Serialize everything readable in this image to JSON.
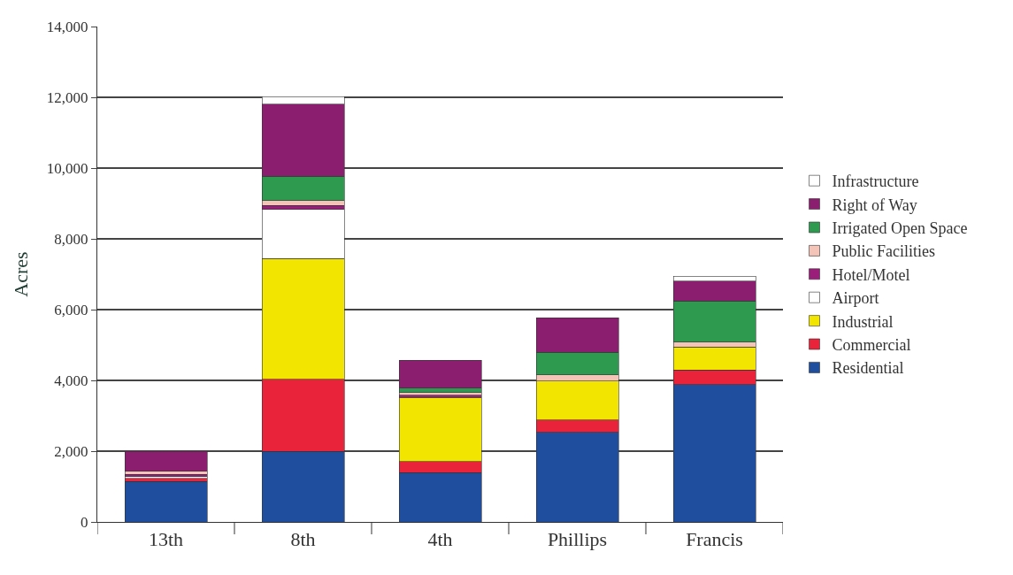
{
  "chart_data": {
    "type": "bar",
    "stacked": true,
    "ylabel": "Acres",
    "categories": [
      "13th",
      "8th",
      "4th",
      "Phillips",
      "Francis"
    ],
    "series": [
      {
        "name": "Residential",
        "color": "#1f4e9f",
        "values": [
          1150,
          1990,
          1400,
          2530,
          3880
        ]
      },
      {
        "name": "Commercial",
        "color": "#e8233a",
        "values": [
          80,
          2040,
          310,
          350,
          410
        ]
      },
      {
        "name": "Industrial",
        "color": "#f2e600",
        "values": [
          null,
          3420,
          1810,
          1100,
          660
        ]
      },
      {
        "name": "Airport",
        "color": "#ffffff",
        "values": [
          50,
          1380,
          null,
          null,
          null
        ]
      },
      {
        "name": "Hotel/Motel",
        "color": "#9b1f7a",
        "values": [
          70,
          120,
          60,
          null,
          null
        ]
      },
      {
        "name": "Public Facilities",
        "color": "#f4c4b8",
        "values": [
          80,
          130,
          80,
          180,
          130
        ]
      },
      {
        "name": "Irrigated Open Space",
        "color": "#2e9a50",
        "values": [
          null,
          690,
          120,
          640,
          1170
        ]
      },
      {
        "name": "Right of Way",
        "color": "#8b1e6e",
        "values": [
          570,
          2040,
          790,
          970,
          560
        ]
      },
      {
        "name": "Infrastructure",
        "color": "#ffffff",
        "values": [
          null,
          210,
          null,
          null,
          130
        ]
      }
    ],
    "ylim": [
      0,
      14000
    ],
    "yticks": [
      {
        "value": 0,
        "label": "0"
      },
      {
        "value": 2000,
        "label": "2,000"
      },
      {
        "value": 4000,
        "label": "4,000"
      },
      {
        "value": 6000,
        "label": "6,000"
      },
      {
        "value": 8000,
        "label": "8,000"
      },
      {
        "value": 10000,
        "label": "10,000"
      },
      {
        "value": 12000,
        "label": "12,000"
      },
      {
        "value": 14000,
        "label": "14,000"
      }
    ],
    "grid": "y",
    "legend": "right"
  }
}
